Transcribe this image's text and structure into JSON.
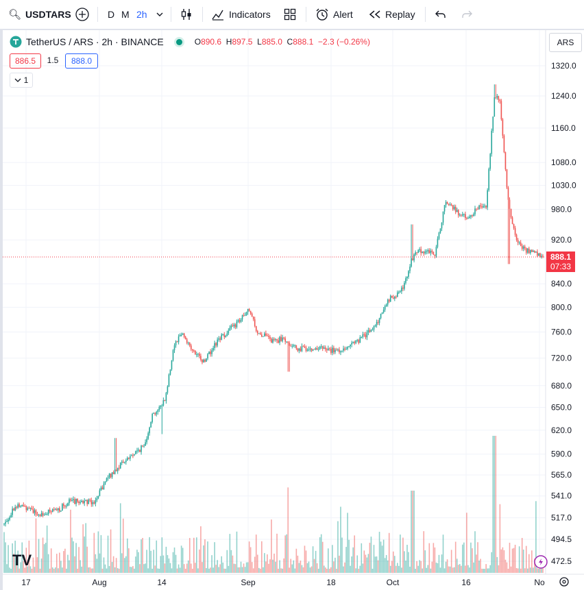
{
  "toolbar": {
    "symbol": "USDTARS",
    "interval_d": "D",
    "interval_m": "M",
    "interval_active": "2h",
    "indicators_label": "Indicators",
    "alert_label": "Alert",
    "replay_label": "Replay"
  },
  "legend": {
    "title": "TetherUS / ARS · 2h · BINANCE",
    "o_label": "O",
    "o_value": "890.6",
    "h_label": "H",
    "h_value": "897.5",
    "l_label": "L",
    "l_value": "885.0",
    "c_label": "C",
    "c_value": "888.1",
    "change": "−2.3 (−0.26%)",
    "bid": "886.5",
    "spread": "1.5",
    "ask": "888.0",
    "collapse_count": "1"
  },
  "currency_button": "ARS",
  "last_price_label": {
    "price": "888.1",
    "countdown": "07:33"
  },
  "logo_text": "TV",
  "colors": {
    "up": "#26a69a",
    "down": "#ef5350",
    "grid": "#f0f3fa",
    "axis_text": "#131722",
    "last_line": "#f23645",
    "interval_active": "#2962ff"
  },
  "chart_data": {
    "type": "candlestick",
    "scale": "log",
    "title": "TetherUS / ARS · 2h · BINANCE",
    "ylim": [
      455,
      1400
    ],
    "y_ticks": [
      1320.0,
      1240.0,
      1160.0,
      1080.0,
      1030.0,
      980.0,
      920.0,
      840.0,
      800.0,
      760.0,
      720.0,
      680.0,
      650.0,
      620.0,
      590.0,
      565.0,
      541.0,
      517.0,
      494.5,
      472.5
    ],
    "x_tick_labels": [
      "17",
      "Aug",
      "14",
      "Sep",
      "18",
      "Oct",
      "16",
      "No"
    ],
    "last_price": 888.1,
    "price_path_anchors": [
      {
        "t": 0.0,
        "price": 510
      },
      {
        "t": 0.02,
        "price": 530
      },
      {
        "t": 0.05,
        "price": 528
      },
      {
        "t": 0.06,
        "price": 520
      },
      {
        "t": 0.1,
        "price": 525
      },
      {
        "t": 0.12,
        "price": 535
      },
      {
        "t": 0.17,
        "price": 535
      },
      {
        "t": 0.19,
        "price": 560
      },
      {
        "t": 0.22,
        "price": 580
      },
      {
        "t": 0.24,
        "price": 590
      },
      {
        "t": 0.26,
        "price": 600
      },
      {
        "t": 0.275,
        "price": 640
      },
      {
        "t": 0.29,
        "price": 650
      },
      {
        "t": 0.3,
        "price": 665
      },
      {
        "t": 0.315,
        "price": 740
      },
      {
        "t": 0.33,
        "price": 760
      },
      {
        "t": 0.35,
        "price": 730
      },
      {
        "t": 0.37,
        "price": 715
      },
      {
        "t": 0.4,
        "price": 750
      },
      {
        "t": 0.44,
        "price": 780
      },
      {
        "t": 0.455,
        "price": 795
      },
      {
        "t": 0.47,
        "price": 760
      },
      {
        "t": 0.5,
        "price": 745
      },
      {
        "t": 0.52,
        "price": 750
      },
      {
        "t": 0.54,
        "price": 735
      },
      {
        "t": 0.58,
        "price": 735
      },
      {
        "t": 0.62,
        "price": 730
      },
      {
        "t": 0.66,
        "price": 748
      },
      {
        "t": 0.69,
        "price": 770
      },
      {
        "t": 0.71,
        "price": 810
      },
      {
        "t": 0.74,
        "price": 830
      },
      {
        "t": 0.755,
        "price": 880
      },
      {
        "t": 0.77,
        "price": 900
      },
      {
        "t": 0.8,
        "price": 895
      },
      {
        "t": 0.82,
        "price": 1000
      },
      {
        "t": 0.84,
        "price": 975
      },
      {
        "t": 0.86,
        "price": 960
      },
      {
        "t": 0.88,
        "price": 985
      },
      {
        "t": 0.895,
        "price": 990
      },
      {
        "t": 0.91,
        "price": 1240
      },
      {
        "t": 0.92,
        "price": 1230
      },
      {
        "t": 0.935,
        "price": 1000
      },
      {
        "t": 0.95,
        "price": 920
      },
      {
        "t": 0.97,
        "price": 900
      },
      {
        "t": 1.0,
        "price": 888
      }
    ],
    "spikes": [
      {
        "t": 0.207,
        "high": 610
      },
      {
        "t": 0.293,
        "low": 615
      },
      {
        "t": 0.528,
        "low": 700
      },
      {
        "t": 0.758,
        "high": 950
      },
      {
        "t": 0.911,
        "high": 1270
      },
      {
        "t": 0.937,
        "low": 875
      }
    ]
  }
}
